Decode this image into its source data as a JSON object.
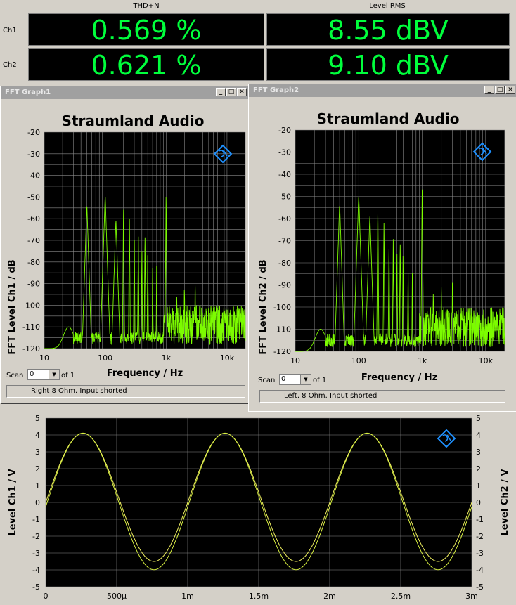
{
  "meters": {
    "left_header": "THD+N",
    "right_header": "Level RMS",
    "rows": [
      {
        "label": "Ch1",
        "thd": "0.569 %",
        "level": "8.55 dBV"
      },
      {
        "label": "Ch2",
        "thd": "0.621 %",
        "level": "9.10 dBV"
      }
    ]
  },
  "fft1": {
    "window_title": "FFT Graph1",
    "plot_title": "Straumland Audio",
    "ylabel": "FFT Level Ch1 / dB",
    "xlabel": "Frequency / Hz",
    "scan_label": "Scan",
    "scan_value": "0",
    "of_label": "of 1",
    "legend": "Right 8 Ohm. Input shorted"
  },
  "fft2": {
    "window_title": "FFT Graph2",
    "plot_title": "Straumland Audio",
    "ylabel": "FFT Level Ch2 / dB",
    "xlabel": "Frequency / Hz",
    "scan_label": "Scan",
    "scan_value": "0",
    "of_label": "of 1",
    "legend": "Left. 8 Ohm. Input shorted"
  },
  "scope": {
    "ylabel_left": "Level Ch1 / V",
    "ylabel_right": "Level Ch2 / V"
  },
  "colors": {
    "trace_green": "#7cfc00",
    "trace_yellow": "#f0f060",
    "display_green": "#00ff3c",
    "logo_blue": "#1e90ff"
  },
  "chart_data": [
    {
      "type": "line",
      "name": "fft1",
      "title": "Straumland Audio",
      "xlabel": "Frequency / Hz",
      "ylabel": "FFT Level Ch1 / dB",
      "xscale": "log",
      "xlim": [
        10,
        20000
      ],
      "ylim": [
        -120,
        -20
      ],
      "x_ticks": [
        "10",
        "100",
        "1k",
        "10k"
      ],
      "y_ticks": [
        "-20",
        "-30",
        "-40",
        "-50",
        "-60",
        "-70",
        "-80",
        "-90",
        "-100",
        "-110",
        "-120"
      ],
      "grid": true,
      "peaks": [
        [
          50,
          -53
        ],
        [
          100,
          -49
        ],
        [
          150,
          -60
        ],
        [
          200,
          -52
        ],
        [
          250,
          -58
        ],
        [
          300,
          -66
        ],
        [
          350,
          -68
        ],
        [
          400,
          -72
        ],
        [
          450,
          -65
        ],
        [
          500,
          -74
        ],
        [
          600,
          -80
        ],
        [
          700,
          -81
        ],
        [
          1000,
          -46
        ],
        [
          1500,
          -92
        ],
        [
          2000,
          -88
        ],
        [
          3000,
          -85
        ]
      ],
      "noise_floor": -110
    },
    {
      "type": "line",
      "name": "fft2",
      "title": "Straumland Audio",
      "xlabel": "Frequency / Hz",
      "ylabel": "FFT Level Ch2 / dB",
      "xscale": "log",
      "xlim": [
        10,
        20000
      ],
      "ylim": [
        -120,
        -20
      ],
      "x_ticks": [
        "10",
        "100",
        "1k",
        "10k"
      ],
      "y_ticks": [
        "-20",
        "-30",
        "-40",
        "-50",
        "-60",
        "-70",
        "-80",
        "-90",
        "-100",
        "-110",
        "-120"
      ],
      "grid": true,
      "peaks": [
        [
          50,
          -53
        ],
        [
          100,
          -49
        ],
        [
          150,
          -58
        ],
        [
          200,
          -53
        ],
        [
          250,
          -60
        ],
        [
          300,
          -70
        ],
        [
          350,
          -69
        ],
        [
          400,
          -73
        ],
        [
          450,
          -68
        ],
        [
          500,
          -74
        ],
        [
          600,
          -82
        ],
        [
          700,
          -84
        ],
        [
          1000,
          -43
        ],
        [
          1500,
          -90
        ],
        [
          2000,
          -86
        ],
        [
          3000,
          -84
        ]
      ],
      "noise_floor": -110
    },
    {
      "type": "line",
      "name": "scope",
      "ylabel": "Level Ch1 / V",
      "ylabel_right": "Level Ch2 / V",
      "xlim": [
        0,
        0.003
      ],
      "ylim": [
        -5,
        5
      ],
      "x_ticks": [
        "0",
        "500µ",
        "1m",
        "1.5m",
        "2m",
        "2.5m",
        "3m"
      ],
      "y_ticks": [
        "5",
        "4",
        "3",
        "2",
        "1",
        "0",
        "-1",
        "-2",
        "-3",
        "-4",
        "-5"
      ],
      "grid": true,
      "series": [
        {
          "frequency_hz": 1000,
          "amplitude_v": 3.8,
          "color": "#f0f060"
        },
        {
          "frequency_hz": 1000,
          "amplitude_v": 4.05,
          "color": "#d8f040"
        }
      ]
    }
  ]
}
